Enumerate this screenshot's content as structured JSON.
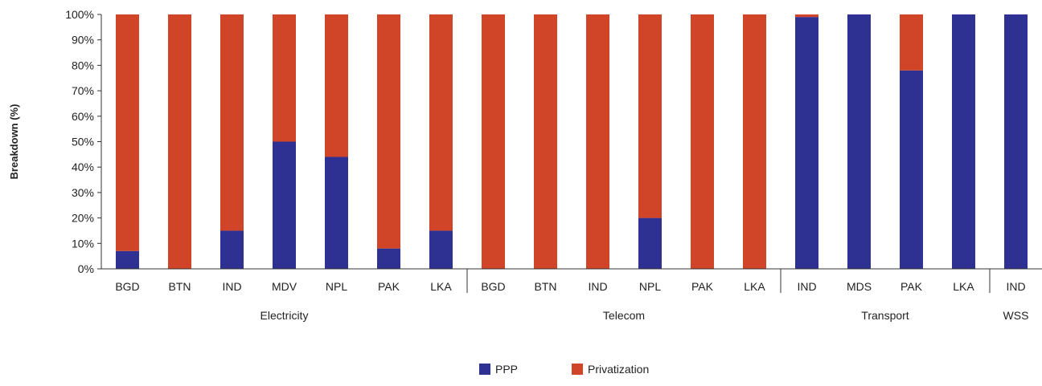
{
  "chart_data": {
    "type": "bar",
    "stacked": true,
    "ylabel": "Breakdown (%)",
    "xlabel": "",
    "ylim": [
      0,
      100
    ],
    "yticks": [
      0,
      10,
      20,
      30,
      40,
      50,
      60,
      70,
      80,
      90,
      100
    ],
    "ytick_suffix": "%",
    "groups": [
      {
        "name": "Electricity",
        "categories": [
          "BGD",
          "BTN",
          "IND",
          "MDV",
          "NPL",
          "PAK",
          "LKA"
        ]
      },
      {
        "name": "Telecom",
        "categories": [
          "BGD",
          "BTN",
          "IND",
          "NPL",
          "PAK",
          "LKA"
        ]
      },
      {
        "name": "Transport",
        "categories": [
          "IND",
          "MDS",
          "PAK",
          "LKA"
        ]
      },
      {
        "name": "WSS",
        "categories": [
          "IND"
        ]
      }
    ],
    "series": [
      {
        "name": "PPP",
        "color": "#2e3192",
        "values": [
          7,
          0,
          15,
          50,
          44,
          8,
          15,
          0,
          0,
          0,
          20,
          0,
          0,
          99,
          100,
          78,
          100,
          100
        ]
      },
      {
        "name": "Privatization",
        "color": "#d04428",
        "values": [
          93,
          100,
          85,
          50,
          56,
          92,
          85,
          100,
          100,
          100,
          80,
          100,
          100,
          1,
          0,
          22,
          0,
          0
        ]
      }
    ],
    "grid": false,
    "legend_position": "bottom-center"
  }
}
